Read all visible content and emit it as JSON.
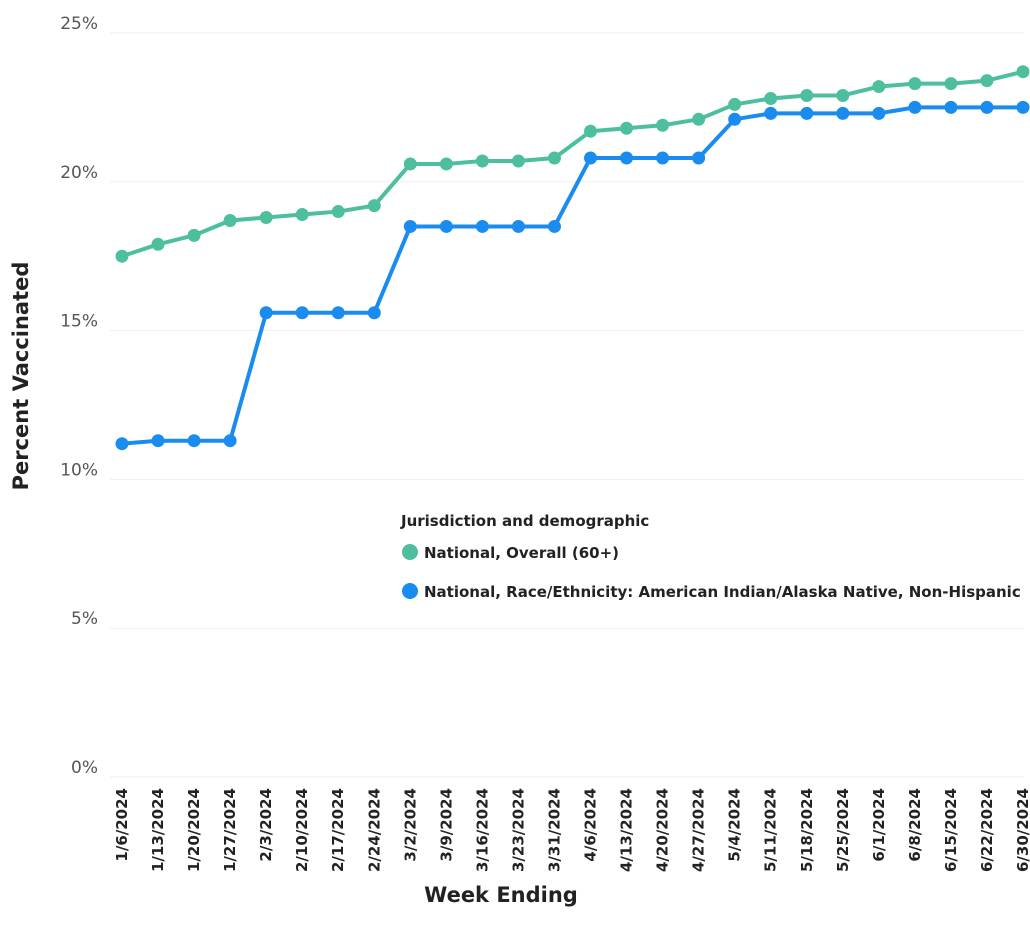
{
  "chart_data": {
    "type": "line",
    "xlabel": "Week Ending",
    "ylabel": "Percent Vaccinated",
    "ylim": [
      0,
      25
    ],
    "yticks": [
      0,
      5,
      10,
      15,
      20,
      25
    ],
    "ytick_labels": [
      "0%",
      "5%",
      "10%",
      "15%",
      "20%",
      "25%"
    ],
    "grid": true,
    "legend": {
      "title": "Jurisdiction and demographic",
      "placement": "center-right"
    },
    "x": [
      "1/6/2024",
      "1/13/2024",
      "1/20/2024",
      "1/27/2024",
      "2/3/2024",
      "2/10/2024",
      "2/17/2024",
      "2/24/2024",
      "3/2/2024",
      "3/9/2024",
      "3/16/2024",
      "3/23/2024",
      "3/31/2024",
      "4/6/2024",
      "4/13/2024",
      "4/20/2024",
      "4/27/2024",
      "5/4/2024",
      "5/11/2024",
      "5/18/2024",
      "5/25/2024",
      "6/1/2024",
      "6/8/2024",
      "6/15/2024",
      "6/22/2024",
      "6/30/2024"
    ],
    "series": [
      {
        "name": "National, Overall (60+)",
        "color": "#4dbf9f",
        "values": [
          17.5,
          17.9,
          18.2,
          18.7,
          18.8,
          18.9,
          19.0,
          19.2,
          20.6,
          20.6,
          20.7,
          20.7,
          20.8,
          21.7,
          21.8,
          21.9,
          22.1,
          22.6,
          22.8,
          22.9,
          22.9,
          23.2,
          23.3,
          23.3,
          23.4,
          23.7
        ]
      },
      {
        "name": "National, Race/Ethnicity: American Indian/Alaska Native, Non-Hispanic",
        "color": "#1a8cf0",
        "values": [
          11.2,
          11.3,
          11.3,
          11.3,
          15.6,
          15.6,
          15.6,
          15.6,
          18.5,
          18.5,
          18.5,
          18.5,
          18.5,
          20.8,
          20.8,
          20.8,
          20.8,
          22.1,
          22.3,
          22.3,
          22.3,
          22.3,
          22.5,
          22.5,
          22.5,
          22.5
        ]
      }
    ]
  }
}
